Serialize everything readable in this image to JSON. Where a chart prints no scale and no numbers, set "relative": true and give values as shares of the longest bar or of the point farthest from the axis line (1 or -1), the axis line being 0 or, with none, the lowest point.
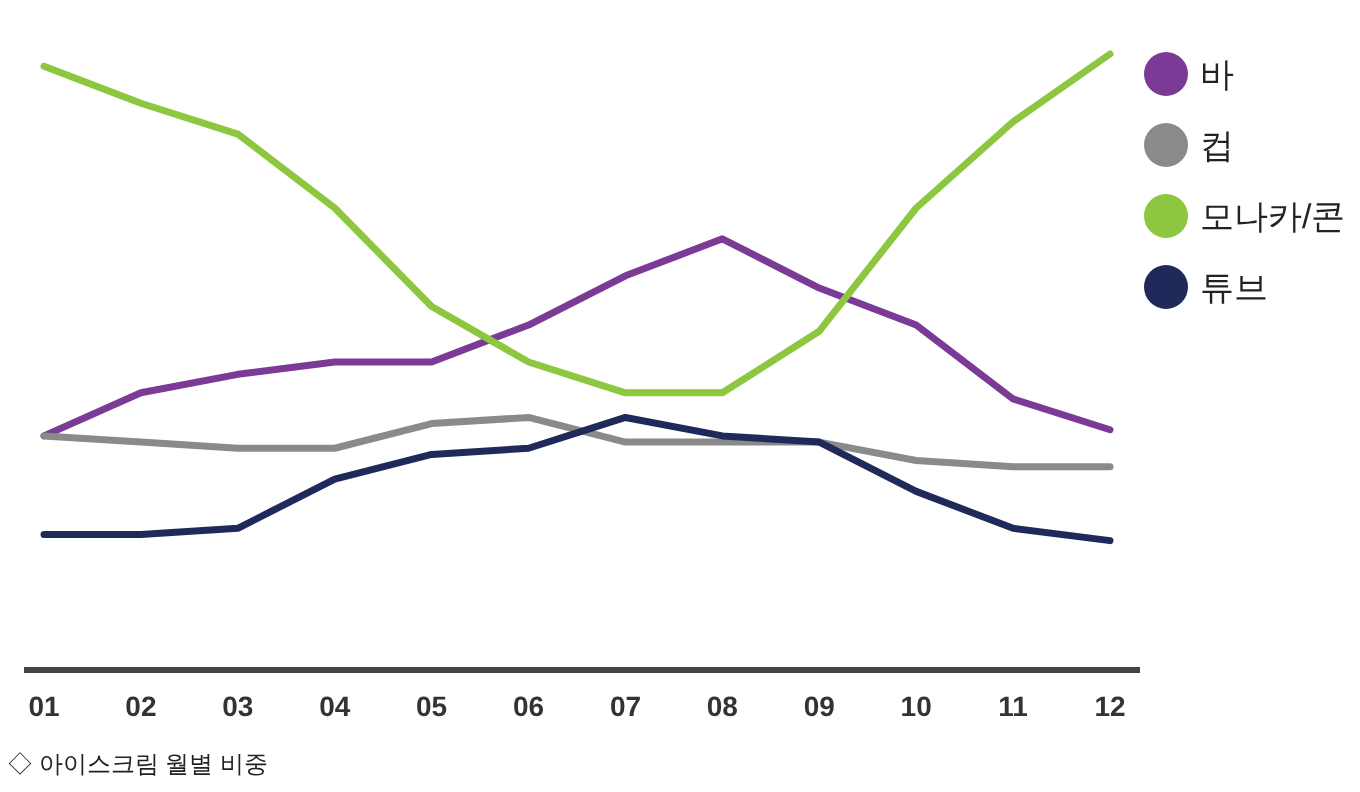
{
  "chart_data": {
    "type": "line",
    "relative": true,
    "legend": "top right",
    "grid": false,
    "categories": [
      "01",
      "02",
      "03",
      "04",
      "05",
      "06",
      "07",
      "08",
      "09",
      "10",
      "11",
      "12"
    ],
    "series": [
      {
        "name": "바",
        "color": "#7b3a96",
        "values": [
          0.38,
          0.45,
          0.48,
          0.5,
          0.5,
          0.56,
          0.64,
          0.7,
          0.62,
          0.56,
          0.44,
          0.39
        ]
      },
      {
        "name": "컵",
        "color": "#8a8a8a",
        "values": [
          0.38,
          0.37,
          0.36,
          0.36,
          0.4,
          0.41,
          0.37,
          0.37,
          0.37,
          0.34,
          0.33,
          0.33
        ]
      },
      {
        "name": "모나카/콘",
        "color": "#8dc63f",
        "values": [
          0.98,
          0.92,
          0.87,
          0.75,
          0.59,
          0.5,
          0.45,
          0.45,
          0.55,
          0.75,
          0.89,
          1
        ]
      },
      {
        "name": "튜브",
        "color": "#1f2a5a",
        "values": [
          0.22,
          0.22,
          0.23,
          0.31,
          0.35,
          0.36,
          0.41,
          0.38,
          0.37,
          0.29,
          0.23,
          0.21
        ]
      }
    ],
    "annotations": [
      "◇ 아이스크림 월별 비중"
    ]
  }
}
